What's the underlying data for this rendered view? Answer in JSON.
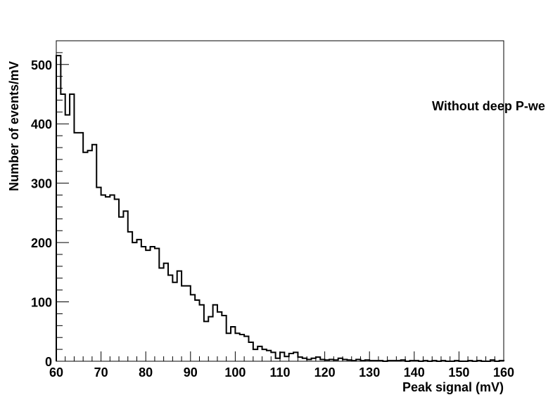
{
  "chart_data": {
    "type": "bar",
    "subtype": "histogram",
    "title": "",
    "xlabel": "Peak signal (mV)",
    "ylabel": "Number of events/mV",
    "annotation": "Without deep P-we",
    "xlim": [
      60,
      160
    ],
    "ylim": [
      0,
      540
    ],
    "bin_width": 1,
    "x_ticks": [
      60,
      70,
      80,
      90,
      100,
      110,
      120,
      130,
      140,
      150,
      160
    ],
    "x_tick_labels": [
      "60",
      "70",
      "80",
      "90",
      "100",
      "110",
      "120",
      "130",
      "140",
      "150",
      "160"
    ],
    "y_ticks": [
      0,
      100,
      200,
      300,
      400,
      500
    ],
    "y_tick_labels": [
      "0",
      "100",
      "200",
      "300",
      "400",
      "500"
    ],
    "grid": false,
    "legend": "none",
    "line_color": "#000000",
    "bin_edges_start": 60,
    "values": [
      515,
      450,
      415,
      450,
      385,
      385,
      352,
      355,
      365,
      293,
      280,
      277,
      280,
      273,
      243,
      253,
      218,
      200,
      205,
      193,
      187,
      193,
      190,
      157,
      165,
      145,
      133,
      152,
      127,
      127,
      112,
      103,
      95,
      67,
      75,
      95,
      83,
      77,
      47,
      58,
      47,
      45,
      42,
      32,
      20,
      25,
      20,
      18,
      15,
      5,
      15,
      8,
      13,
      15,
      7,
      5,
      3,
      5,
      7,
      3,
      2,
      3,
      2,
      5,
      3,
      2,
      1,
      3,
      1,
      2,
      1,
      1,
      1,
      0,
      1,
      1,
      1,
      2,
      0,
      1,
      1,
      0,
      1,
      0,
      1,
      0,
      1,
      0,
      0,
      1,
      0,
      0,
      1,
      0,
      1,
      0,
      0,
      2,
      0,
      1
    ]
  }
}
